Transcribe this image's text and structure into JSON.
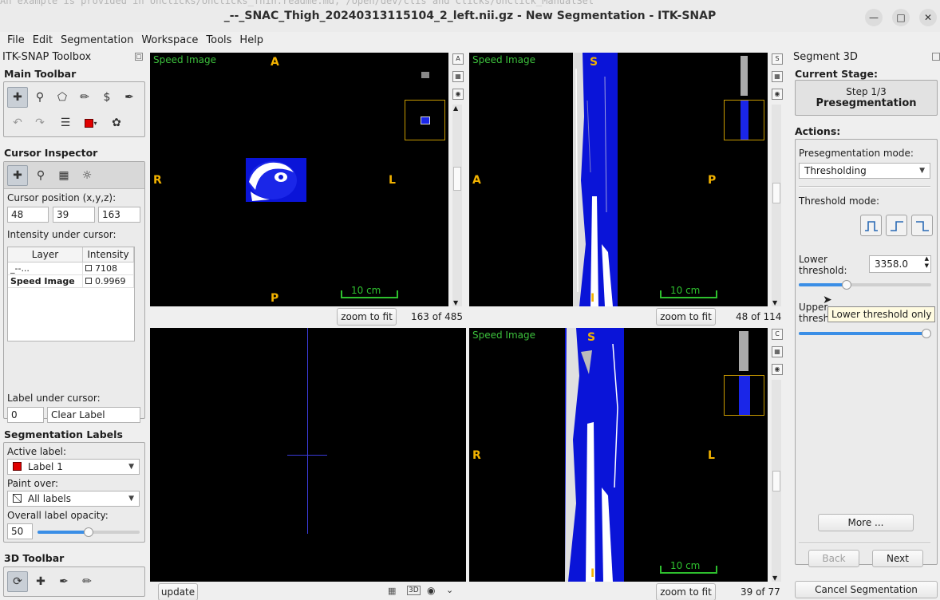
{
  "window": {
    "title": "_--_SNAC_Thigh_20240313115104_2_left.nii.gz - New Segmentation - ITK-SNAP",
    "background_text": "An example is provided in UnClicks/UnClicks_Thin.readme.md, /open/dev/clis and Clicks/UnClick_ManualSel"
  },
  "menu": [
    "File",
    "Edit",
    "Segmentation",
    "Workspace",
    "Tools",
    "Help"
  ],
  "toolbox": {
    "title": "ITK-SNAP Toolbox",
    "main_toolbar_title": "Main Toolbar",
    "cursor_inspector": {
      "title": "Cursor Inspector",
      "position_label": "Cursor position (x,y,z):",
      "x": "48",
      "y": "39",
      "z": "163",
      "intensity_label": "Intensity under cursor:",
      "table_headers": [
        "Layer",
        "Intensity"
      ],
      "rows": [
        {
          "layer": "_--...",
          "intensity": "7108"
        },
        {
          "layer": "Speed Image",
          "intensity": "0.9969"
        }
      ],
      "label_under_cursor_label": "Label under cursor:",
      "label_id": "0",
      "label_name": "Clear Label"
    },
    "segmentation_labels": {
      "title": "Segmentation Labels",
      "active_label_label": "Active label:",
      "active_label": "Label 1",
      "active_label_color": "#e00000",
      "paint_over_label": "Paint over:",
      "paint_over": "All labels",
      "opacity_label": "Overall label opacity:",
      "opacity": "50",
      "opacity_fraction": 0.5
    },
    "toolbar_3d_title": "3D Toolbar"
  },
  "views": {
    "top_left": {
      "label": "Speed Image",
      "orient": {
        "top": "A",
        "bottom": "P",
        "left": "R",
        "right": "L"
      },
      "scale": "10 cm",
      "slice": "163 of 485",
      "zoom": "zoom to fit",
      "side_letter": "A"
    },
    "top_right": {
      "label": "Speed Image",
      "orient": {
        "top": "S",
        "bottom": "I",
        "left": "A",
        "right": "P"
      },
      "scale": "10 cm",
      "slice": "48 of 114",
      "zoom": "zoom to fit",
      "side_letter": "S"
    },
    "bottom_left": {
      "update": "update"
    },
    "bottom_right": {
      "label": "Speed Image",
      "orient": {
        "top": "S",
        "bottom": "I",
        "left": "R",
        "right": "L"
      },
      "scale": "10 cm",
      "slice": "39 of 77",
      "zoom": "zoom to fit",
      "side_letter": "C"
    }
  },
  "segment3d": {
    "title": "Segment 3D",
    "current_stage_label": "Current Stage:",
    "step": "Step 1/3",
    "stage_name": "Presegmentation",
    "actions_label": "Actions:",
    "mode_label": "Presegmentation mode:",
    "mode": "Thresholding",
    "threshold_mode_label": "Threshold mode:",
    "lower_label_1": "Lower",
    "lower_label_2": "threshold:",
    "lower_value": "3358.0",
    "lower_fraction": 0.36,
    "upper_label_1": "Upper",
    "upper_label_2": "thresh",
    "upper_fraction": 1.0,
    "tooltip": "Lower threshold only",
    "more": "More ...",
    "back": "Back",
    "next": "Next",
    "cancel": "Cancel Segmentation"
  }
}
